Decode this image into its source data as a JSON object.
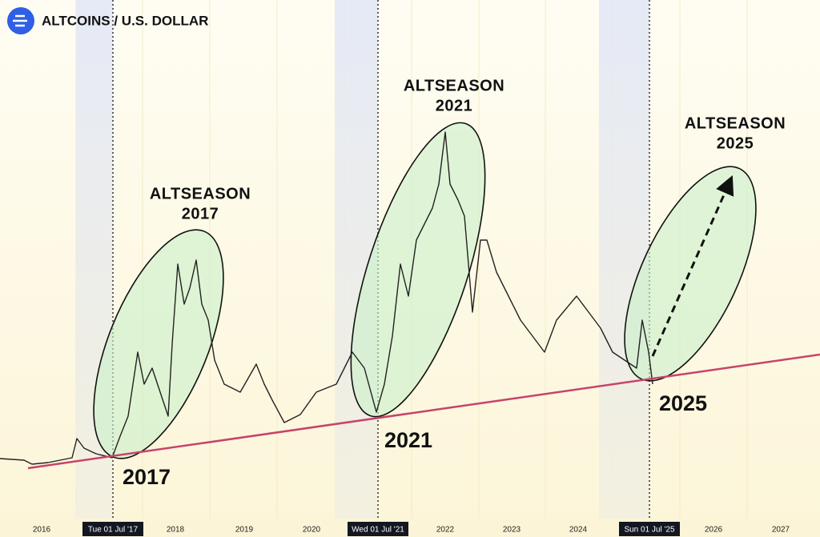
{
  "header": {
    "title": "ALTCOINS / U.S. DOLLAR"
  },
  "annotations": [
    {
      "title": [
        "ALTSEASON",
        "2017"
      ],
      "year": "2017"
    },
    {
      "title": [
        "ALTSEASON",
        "2021"
      ],
      "year": "2021"
    },
    {
      "title": [
        "ALTSEASON",
        "2025"
      ],
      "year": "2025"
    }
  ],
  "x_axis": {
    "labels": [
      "2016",
      "2018",
      "2019",
      "2020",
      "2022",
      "2023",
      "2024",
      "2026",
      "2027"
    ],
    "markers": [
      "Tue 01 Jul '17",
      "Wed 01 Jul '21",
      "Sun 01 Jul '25"
    ]
  }
}
